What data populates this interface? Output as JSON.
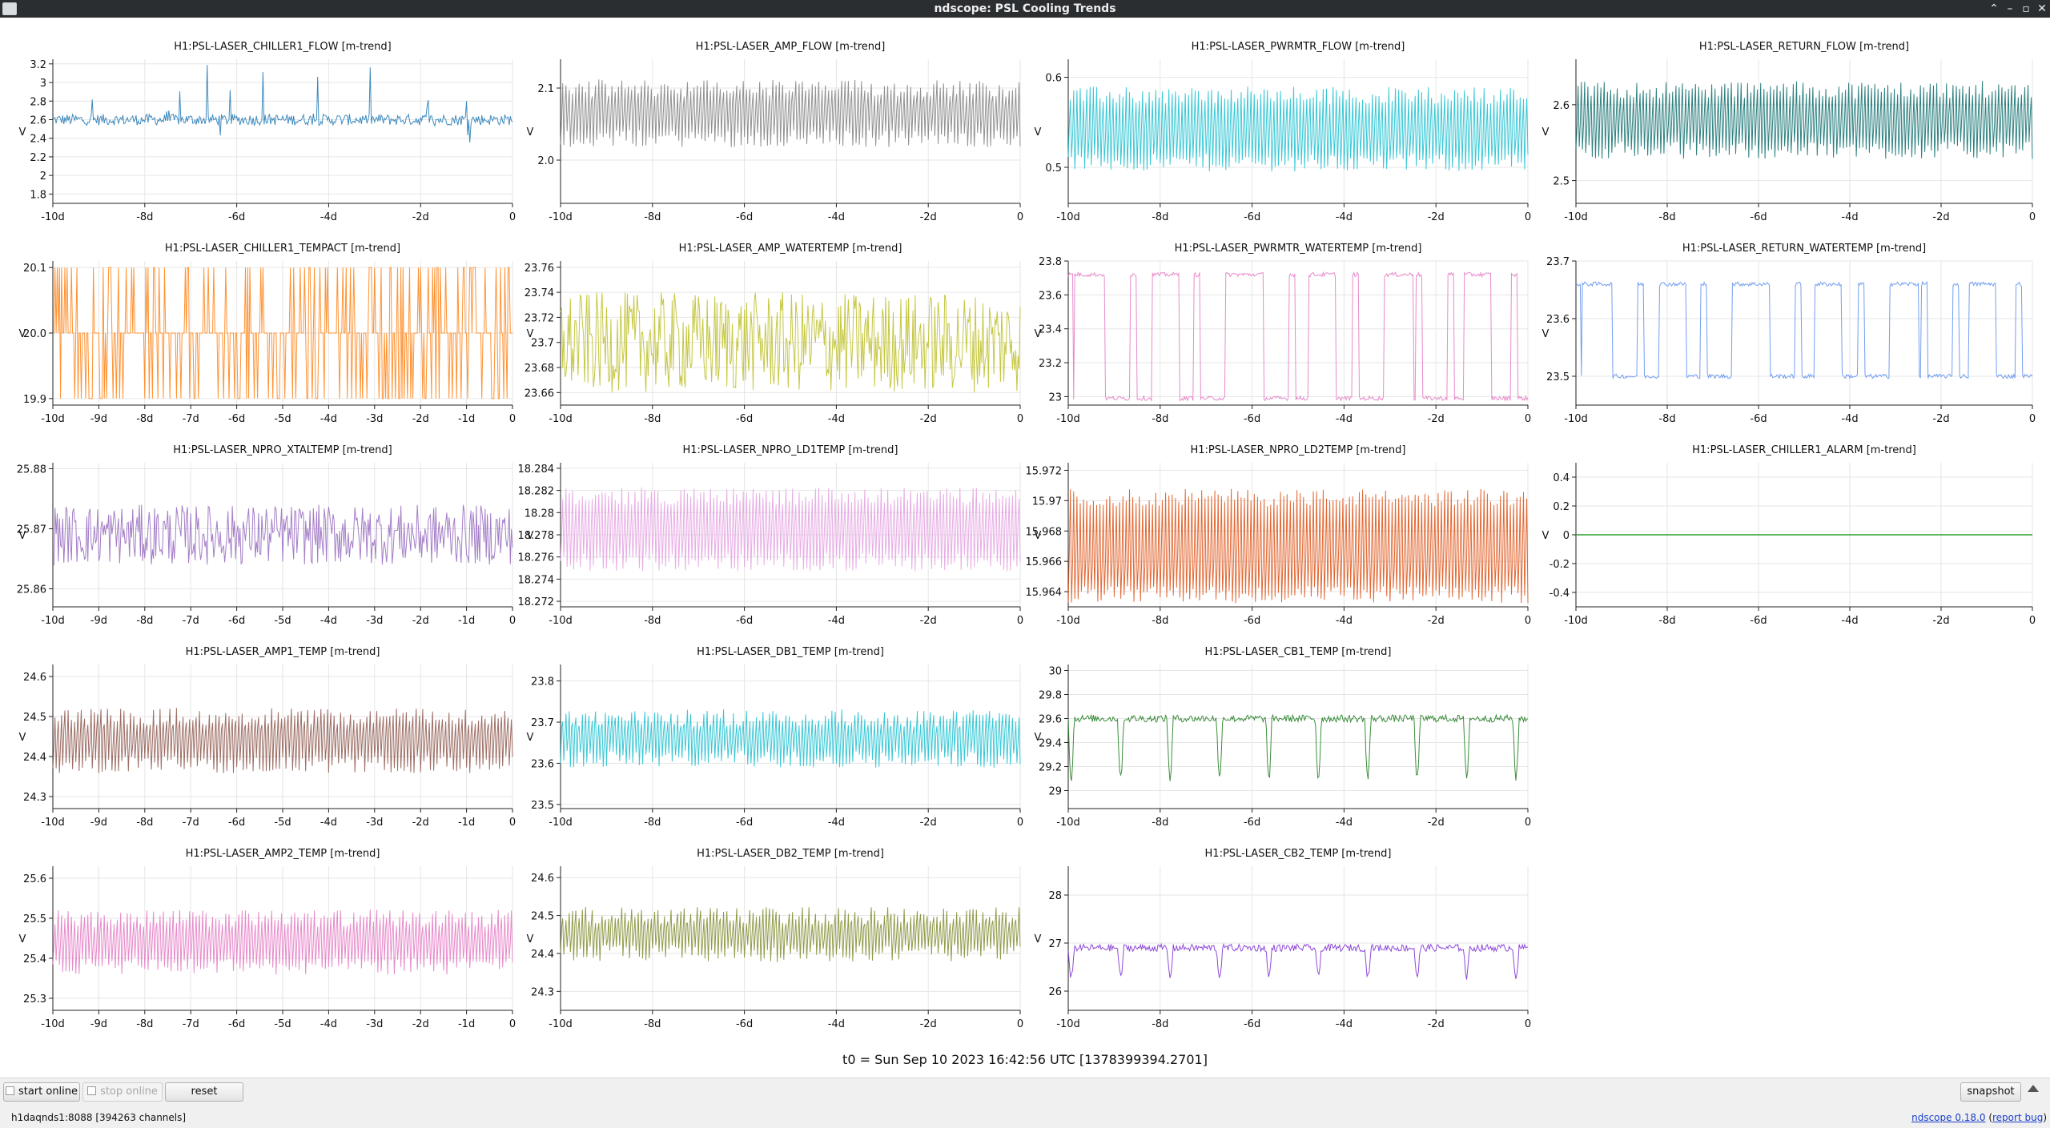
{
  "window": {
    "title": "ndscope: PSL Cooling Trends",
    "controls": [
      "⌃",
      "–",
      "▫",
      "✕"
    ]
  },
  "colors": {
    "chiller1_flow": "#1f77b4",
    "amp_flow": "#7f7f7f",
    "pwrmtr_flow": "#17becf",
    "return_flow": "#0b6b6b",
    "chiller1_tempact": "#ff7f0e",
    "amp_watertemp": "#bcbd22",
    "pwrmtr_watertemp": "#e377c2",
    "return_watertemp": "#5b8def",
    "npro_xtaltemp": "#9467bd",
    "npro_ld1temp": "#e39fe0",
    "npro_ld2temp": "#dd4f10",
    "chiller1_alarm": "#2ca02c",
    "amp1_temp": "#8c564b",
    "db1_temp": "#17becf",
    "cb1_temp": "#1a7a1a",
    "amp2_temp": "#e377c2",
    "db2_temp": "#7f8a2b",
    "cb2_temp": "#7b2ad0"
  },
  "chart_data": [
    {
      "id": "chiller1_flow",
      "title": "H1:PSL-LASER_CHILLER1_FLOW [m-trend]",
      "type": "line",
      "ylabel": "V",
      "ylim": [
        1.7,
        3.25
      ],
      "yticks": [
        "1.8",
        "2",
        "2.2",
        "2.4",
        "2.6",
        "2.8",
        "3",
        "3.2"
      ],
      "xlim": [
        -10,
        0
      ],
      "xticks": [
        "-10d",
        "-8d",
        "-6d",
        "-4d",
        "-2d",
        "0"
      ],
      "center": 2.6,
      "spread": 0.06,
      "spikes": true
    },
    {
      "id": "amp_flow",
      "title": "H1:PSL-LASER_AMP_FLOW [m-trend]",
      "type": "line",
      "ylabel": "V",
      "ylim": [
        1.94,
        2.14
      ],
      "yticks": [
        "2.0",
        "2.1"
      ],
      "xlim": [
        -10,
        0
      ],
      "xticks": [
        "-10d",
        "-8d",
        "-6d",
        "-4d",
        "-2d",
        "0"
      ],
      "bands": [
        2.03,
        2.07,
        2.1
      ]
    },
    {
      "id": "pwrmtr_flow",
      "title": "H1:PSL-LASER_PWRMTR_FLOW [m-trend]",
      "type": "line",
      "ylabel": "V",
      "ylim": [
        0.46,
        0.62
      ],
      "yticks": [
        "0.5",
        "0.6"
      ],
      "xlim": [
        -10,
        0
      ],
      "xticks": [
        "-10d",
        "-8d",
        "-6d",
        "-4d",
        "-2d",
        "0"
      ],
      "bands": [
        0.505,
        0.54,
        0.58
      ]
    },
    {
      "id": "return_flow",
      "title": "H1:PSL-LASER_RETURN_FLOW [m-trend]",
      "type": "line",
      "ylabel": "V",
      "ylim": [
        2.47,
        2.66
      ],
      "yticks": [
        "2.5",
        "2.6"
      ],
      "xlim": [
        -10,
        0
      ],
      "xticks": [
        "-10d",
        "-8d",
        "-6d",
        "-4d",
        "-2d",
        "0"
      ],
      "bands": [
        2.54,
        2.58,
        2.62
      ]
    },
    {
      "id": "chiller1_tempact",
      "title": "H1:PSL-LASER_CHILLER1_TEMPACT [m-trend]",
      "type": "line",
      "ylabel": "V",
      "ylim": [
        19.89,
        20.11
      ],
      "yticks": [
        "19.9",
        "20.0",
        "20.1"
      ],
      "xlim": [
        -10,
        0
      ],
      "xticks": [
        "-10d",
        "-9d",
        "-8d",
        "-7d",
        "-6d",
        "-5d",
        "-4d",
        "-3d",
        "-2d",
        "-1d",
        "0"
      ],
      "center": 20.0,
      "spread": 0.1,
      "square": true
    },
    {
      "id": "amp_watertemp",
      "title": "H1:PSL-LASER_AMP_WATERTEMP [m-trend]",
      "type": "line",
      "ylabel": "V",
      "ylim": [
        23.65,
        23.765
      ],
      "yticks": [
        "23.66",
        "23.68",
        "23.7",
        "23.72",
        "23.74",
        "23.76"
      ],
      "xlim": [
        -10,
        0
      ],
      "xticks": [
        "-10d",
        "-8d",
        "-6d",
        "-4d",
        "-2d",
        "0"
      ],
      "center": 23.7,
      "spread": 0.04
    },
    {
      "id": "pwrmtr_watertemp",
      "title": "H1:PSL-LASER_PWRMTR_WATERTEMP [m-trend]",
      "type": "line",
      "ylabel": "V",
      "ylim": [
        22.95,
        23.8
      ],
      "yticks": [
        "23",
        "23.2",
        "23.4",
        "23.6",
        "23.8"
      ],
      "xlim": [
        -10,
        0
      ],
      "xticks": [
        "-10d",
        "-8d",
        "-6d",
        "-4d",
        "-2d",
        "0"
      ],
      "low": 22.99,
      "high": 23.72
    },
    {
      "id": "return_watertemp",
      "title": "H1:PSL-LASER_RETURN_WATERTEMP [m-trend]",
      "type": "line",
      "ylabel": "V",
      "ylim": [
        23.45,
        23.7
      ],
      "yticks": [
        "23.5",
        "23.6",
        "23.7"
      ],
      "xlim": [
        -10,
        0
      ],
      "xticks": [
        "-10d",
        "-8d",
        "-6d",
        "-4d",
        "-2d",
        "0"
      ],
      "low": 23.5,
      "high": 23.66
    },
    {
      "id": "npro_xtaltemp",
      "title": "H1:PSL-LASER_NPRO_XTALTEMP [m-trend]",
      "type": "line",
      "ylabel": "V",
      "ylim": [
        25.857,
        25.881
      ],
      "yticks": [
        "25.86",
        "25.87",
        "25.88"
      ],
      "xlim": [
        -10,
        0
      ],
      "xticks": [
        "-10d",
        "-9d",
        "-8d",
        "-7d",
        "-6d",
        "-5d",
        "-4d",
        "-3d",
        "-2d",
        "-1d",
        "0"
      ],
      "center": 25.869,
      "spread": 0.005
    },
    {
      "id": "npro_ld1temp",
      "title": "H1:PSL-LASER_NPRO_LD1TEMP [m-trend]",
      "type": "line",
      "ylabel": "V",
      "ylim": [
        18.2715,
        18.2845
      ],
      "yticks": [
        "18.272",
        "18.274",
        "18.276",
        "18.278",
        "18.28",
        "18.282",
        "18.284"
      ],
      "xlim": [
        -10,
        0
      ],
      "xticks": [
        "-10d",
        "-8d",
        "-6d",
        "-4d",
        "-2d",
        "0"
      ],
      "bands": [
        18.2755,
        18.2785,
        18.2815
      ]
    },
    {
      "id": "npro_ld2temp",
      "title": "H1:PSL-LASER_NPRO_LD2TEMP [m-trend]",
      "type": "line",
      "ylabel": "V",
      "ylim": [
        15.963,
        15.9725
      ],
      "yticks": [
        "15.964",
        "15.966",
        "15.968",
        "15.97",
        "15.972"
      ],
      "xlim": [
        -10,
        0
      ],
      "xticks": [
        "-10d",
        "-8d",
        "-6d",
        "-4d",
        "-2d",
        "0"
      ],
      "bands": [
        15.9638,
        15.9662,
        15.9702
      ]
    },
    {
      "id": "chiller1_alarm",
      "title": "H1:PSL-LASER_CHILLER1_ALARM [m-trend]",
      "type": "line",
      "ylabel": "V",
      "ylim": [
        -0.5,
        0.5
      ],
      "yticks": [
        "-0.4",
        "-0.2",
        "0",
        "0.2",
        "0.4"
      ],
      "xlim": [
        -10,
        0
      ],
      "xticks": [
        "-10d",
        "-8d",
        "-6d",
        "-4d",
        "-2d",
        "0"
      ],
      "flat": 0
    },
    {
      "id": "amp1_temp",
      "title": "H1:PSL-LASER_AMP1_TEMP [m-trend]",
      "type": "line",
      "ylabel": "V",
      "ylim": [
        24.27,
        24.63
      ],
      "yticks": [
        "24.3",
        "24.4",
        "24.5",
        "24.6"
      ],
      "xlim": [
        -10,
        0
      ],
      "xticks": [
        "-10d",
        "-9d",
        "-8d",
        "-7d",
        "-6d",
        "-5d",
        "-4d",
        "-3d",
        "-2d",
        "-1d",
        "0"
      ],
      "bands": [
        24.38,
        24.45,
        24.5
      ]
    },
    {
      "id": "db1_temp",
      "title": "H1:PSL-LASER_DB1_TEMP [m-trend]",
      "type": "line",
      "ylabel": "V",
      "ylim": [
        23.49,
        23.84
      ],
      "yticks": [
        "23.5",
        "23.6",
        "23.7",
        "23.8"
      ],
      "xlim": [
        -10,
        0
      ],
      "xticks": [
        "-10d",
        "-8d",
        "-6d",
        "-4d",
        "-2d",
        "0"
      ],
      "bands": [
        23.61,
        23.67,
        23.71
      ]
    },
    {
      "id": "cb1_temp",
      "title": "H1:PSL-LASER_CB1_TEMP [m-trend]",
      "type": "line",
      "ylabel": "V",
      "ylim": [
        28.85,
        30.05
      ],
      "yticks": [
        "29",
        "29.2",
        "29.4",
        "29.6",
        "29.8",
        "30"
      ],
      "xlim": [
        -10,
        0
      ],
      "xticks": [
        "-10d",
        "-8d",
        "-6d",
        "-4d",
        "-2d",
        "0"
      ],
      "wave": [
        29.6,
        29.1
      ]
    },
    {
      "id": "amp2_temp",
      "title": "H1:PSL-LASER_AMP2_TEMP [m-trend]",
      "type": "line",
      "ylabel": "V",
      "ylim": [
        25.27,
        25.63
      ],
      "yticks": [
        "25.3",
        "25.4",
        "25.5",
        "25.6"
      ],
      "xlim": [
        -10,
        0
      ],
      "xticks": [
        "-10d",
        "-9d",
        "-8d",
        "-7d",
        "-6d",
        "-5d",
        "-4d",
        "-3d",
        "-2d",
        "-1d",
        "0"
      ],
      "bands": [
        25.38,
        25.45,
        25.5
      ]
    },
    {
      "id": "db2_temp",
      "title": "H1:PSL-LASER_DB2_TEMP [m-trend]",
      "type": "line",
      "ylabel": "V",
      "ylim": [
        24.25,
        24.63
      ],
      "yticks": [
        "24.3",
        "24.4",
        "24.5",
        "24.6"
      ],
      "xlim": [
        -10,
        0
      ],
      "xticks": [
        "-10d",
        "-8d",
        "-6d",
        "-4d",
        "-2d",
        "0"
      ],
      "bands": [
        24.4,
        24.46,
        24.5
      ]
    },
    {
      "id": "cb2_temp",
      "title": "H1:PSL-LASER_CB2_TEMP [m-trend]",
      "type": "line",
      "ylabel": "V",
      "ylim": [
        25.6,
        28.6
      ],
      "yticks": [
        "26",
        "27",
        "28"
      ],
      "xlim": [
        -10,
        0
      ],
      "xticks": [
        "-10d",
        "-8d",
        "-6d",
        "-4d",
        "-2d",
        "0"
      ],
      "wave": [
        26.9,
        26.3
      ]
    }
  ],
  "t0_label": "t0 = Sun Sep 10 2023 16:42:56 UTC [1378399394.2701]",
  "buttons": {
    "start_online": "start online",
    "stop_online": "stop online",
    "reset": "reset",
    "snapshot": "snapshot"
  },
  "status": {
    "server": "h1daqnds1:8088  [394263 channels]",
    "version": "ndscope 0.18.0",
    "report": "report bug"
  }
}
